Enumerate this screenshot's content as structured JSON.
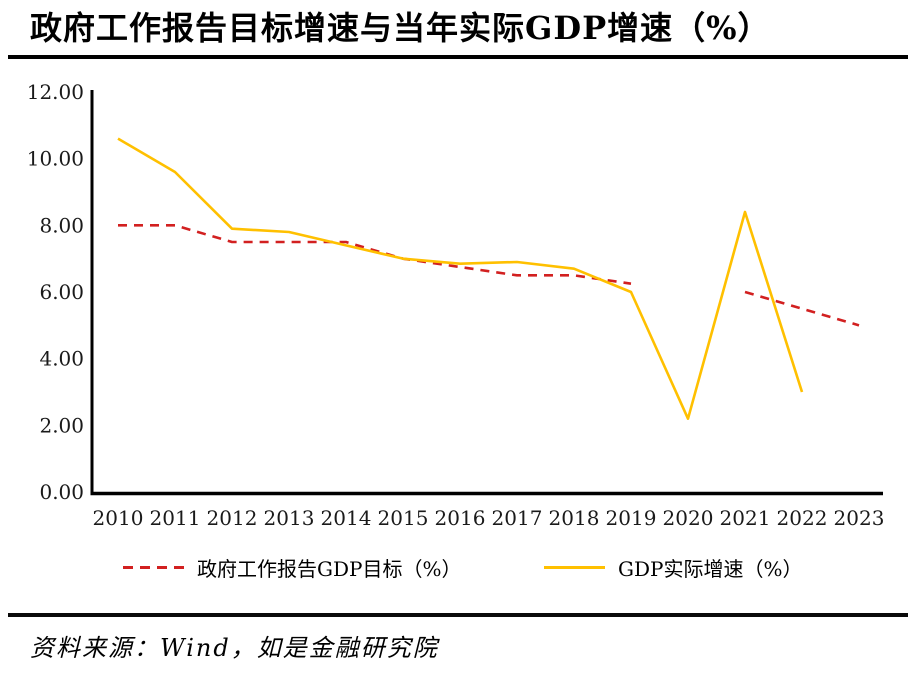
{
  "title": "政府工作报告目标增速与当年实际GDP增速（%）",
  "source_note": "资料来源：Wind，如是金融研究院",
  "colors": {
    "target_line": "#D22020",
    "actual_line": "#FFC000",
    "axis": "#000000"
  },
  "legend": [
    {
      "label": "政府工作报告GDP目标（%）",
      "color": "#D22020",
      "style": "dashed"
    },
    {
      "label": "GDP实际增速（%）",
      "color": "#FFC000",
      "style": "solid"
    }
  ],
  "chart_data": {
    "type": "line",
    "title": "政府工作报告目标增速与当年实际GDP增速（%）",
    "xlabel": "",
    "ylabel": "",
    "categories": [
      "2010",
      "2011",
      "2012",
      "2013",
      "2014",
      "2015",
      "2016",
      "2017",
      "2018",
      "2019",
      "2020",
      "2021",
      "2022",
      "2023"
    ],
    "series": [
      {
        "name": "政府工作报告GDP目标（%）",
        "color": "#D22020",
        "dash": true,
        "values": [
          8.0,
          8.0,
          7.5,
          7.5,
          7.5,
          7.0,
          6.75,
          6.5,
          6.5,
          6.25,
          null,
          6.0,
          5.5,
          5.0
        ]
      },
      {
        "name": "GDP实际增速（%）",
        "color": "#FFC000",
        "dash": false,
        "values": [
          10.6,
          9.6,
          7.9,
          7.8,
          7.4,
          7.0,
          6.85,
          6.9,
          6.7,
          6.0,
          2.2,
          8.4,
          3.0,
          null
        ]
      }
    ],
    "ylim": [
      0,
      12
    ],
    "ytick_values": [
      0,
      2,
      4,
      6,
      8,
      10,
      12
    ],
    "ytick_labels": [
      "0.00",
      "2.00",
      "4.00",
      "6.00",
      "8.00",
      "10.00",
      "12.00"
    ],
    "grid": false,
    "legend_position": "bottom",
    "notes": "红色虚线在2020年无数据（断开）；黄色实线止于2022年"
  }
}
